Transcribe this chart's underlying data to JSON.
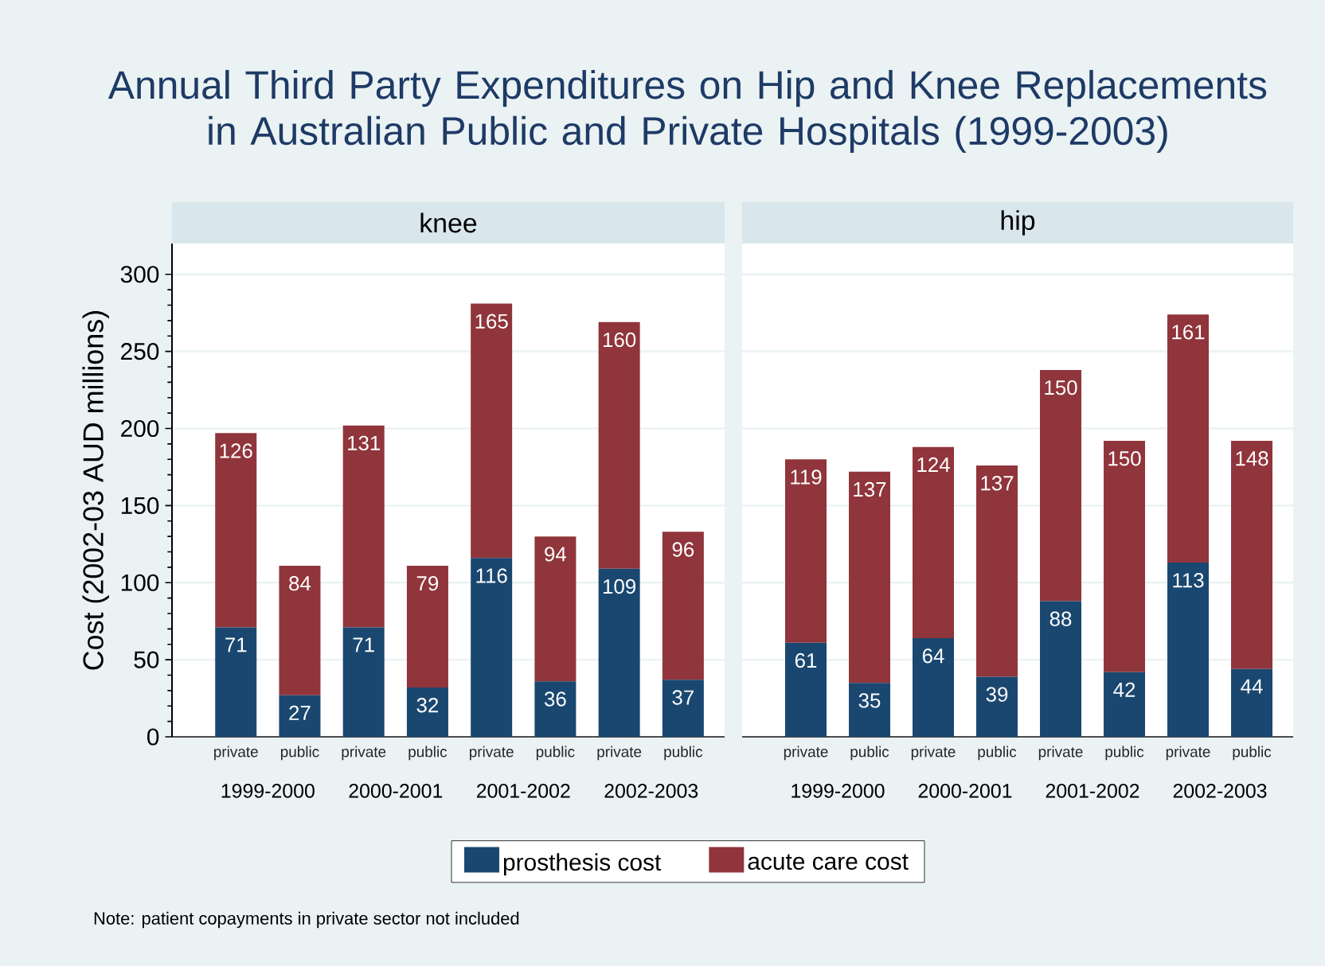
{
  "chart_data": [
    {
      "type": "bar",
      "stacked": true,
      "title": "Annual Third Party Expenditures on Hip and Knee Replacements in Australian Public and Private Hospitals (1999-2003)",
      "subtitle": "knee",
      "ylabel": "Cost (2002-03 AUD millions)",
      "categories": [
        "private",
        "public",
        "private",
        "public",
        "private",
        "public",
        "private",
        "public"
      ],
      "series": [
        {
          "name": "prosthesis cost",
          "color": "#1a476f",
          "values": [
            71,
            27,
            71,
            32,
            116,
            36,
            109,
            37
          ]
        },
        {
          "name": "acute care cost",
          "color": "#90353b",
          "values": [
            126,
            84,
            131,
            79,
            165,
            94,
            160,
            96
          ]
        }
      ],
      "ylim": [
        0,
        320
      ],
      "yticks": [
        0,
        50,
        100,
        150,
        200,
        250,
        300
      ],
      "grid": "y",
      "data_labels": true,
      "legend": "bottom",
      "annotations": [
        "1999-2000",
        "2000-2001",
        "2001-2002",
        "2002-2003"
      ]
    },
    {
      "type": "bar",
      "stacked": true,
      "subtitle": "hip",
      "categories": [
        "private",
        "public",
        "private",
        "public",
        "private",
        "public",
        "private",
        "public"
      ],
      "series": [
        {
          "color": "#1a476f",
          "values": [
            61,
            35,
            64,
            39,
            88,
            42,
            113,
            44
          ]
        },
        {
          "color": "#90353b",
          "values": [
            119,
            137,
            124,
            137,
            150,
            150,
            161,
            148
          ]
        }
      ],
      "ylim": [
        0,
        320
      ],
      "yticks": [
        0,
        50,
        100,
        150,
        200,
        250,
        300
      ],
      "grid": "y",
      "tick_labels": "x",
      "data_labels": true,
      "annotations": [
        "1999-2000",
        "2000-2001",
        "2001-2002",
        "2002-2003",
        "Note: patient copayments in private sector not included"
      ]
    }
  ]
}
